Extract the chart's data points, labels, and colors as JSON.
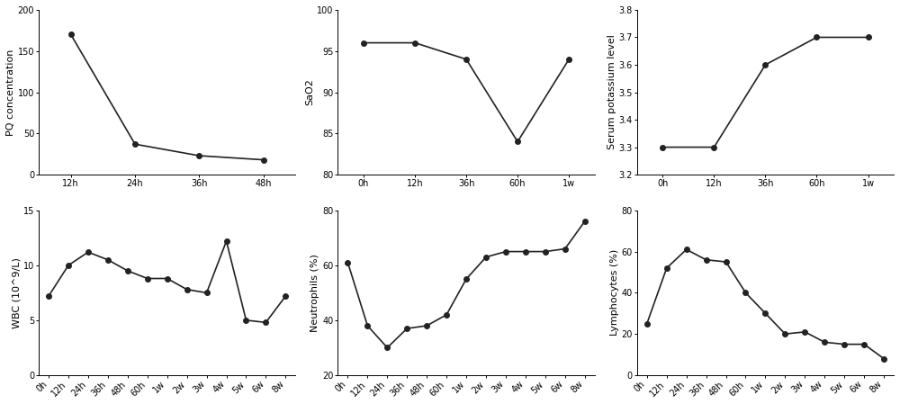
{
  "plots": [
    {
      "title": "",
      "ylabel": "PQ concentration",
      "xlabel": "",
      "x_labels": [
        "12h",
        "24h",
        "36h",
        "48h"
      ],
      "y_values": [
        170,
        37,
        23,
        18
      ],
      "ylim": [
        0,
        200
      ],
      "yticks": [
        0,
        50,
        100,
        150,
        200
      ],
      "row": 0,
      "col": 0
    },
    {
      "title": "",
      "ylabel": "SaO2",
      "xlabel": "",
      "x_labels": [
        "0h",
        "12h",
        "36h",
        "60h",
        "1w"
      ],
      "y_values": [
        96,
        96,
        94,
        84,
        94
      ],
      "ylim": [
        80,
        100
      ],
      "yticks": [
        80,
        85,
        90,
        95,
        100
      ],
      "row": 0,
      "col": 1
    },
    {
      "title": "",
      "ylabel": "Serum potassium level",
      "xlabel": "",
      "x_labels": [
        "0h",
        "12h",
        "36h",
        "60h",
        "1w"
      ],
      "y_values": [
        3.3,
        3.3,
        3.6,
        3.7,
        3.7
      ],
      "ylim": [
        3.2,
        3.8
      ],
      "yticks": [
        3.2,
        3.3,
        3.4,
        3.5,
        3.6,
        3.7,
        3.8
      ],
      "row": 0,
      "col": 2
    },
    {
      "title": "",
      "ylabel": "WBC (10^9/L)",
      "xlabel": "",
      "x_labels": [
        "0h",
        "12h",
        "24h",
        "36h",
        "48h",
        "60h",
        "1w",
        "2w",
        "3w",
        "4w",
        "5w",
        "6w",
        "8w"
      ],
      "y_values": [
        7.2,
        10.0,
        11.2,
        10.5,
        9.5,
        8.8,
        8.8,
        7.8,
        7.5,
        12.2,
        5.0,
        4.8,
        7.2
      ],
      "ylim": [
        0,
        15
      ],
      "yticks": [
        0,
        5,
        10,
        15
      ],
      "row": 1,
      "col": 0
    },
    {
      "title": "",
      "ylabel": "Neutrophils (%)",
      "xlabel": "",
      "x_labels": [
        "0h",
        "12h",
        "24h",
        "36h",
        "48h",
        "60h",
        "1w",
        "2w",
        "3w",
        "4w",
        "5w",
        "6w",
        "8w"
      ],
      "y_values": [
        61,
        38,
        30,
        37,
        38,
        42,
        55,
        63,
        65,
        65,
        65,
        66,
        76
      ],
      "ylim": [
        20,
        80
      ],
      "yticks": [
        20,
        40,
        60,
        80
      ],
      "row": 1,
      "col": 1
    },
    {
      "title": "",
      "ylabel": "Lymphocytes (%)",
      "xlabel": "",
      "x_labels": [
        "0h",
        "12h",
        "24h",
        "36h",
        "48h",
        "60h",
        "1w",
        "2w",
        "3w",
        "4w",
        "5w",
        "6w",
        "8w"
      ],
      "y_values": [
        25,
        52,
        61,
        56,
        55,
        40,
        30,
        20,
        21,
        16,
        15,
        15,
        8
      ],
      "ylim": [
        0,
        80
      ],
      "yticks": [
        0,
        20,
        40,
        60,
        80
      ],
      "row": 1,
      "col": 2
    }
  ],
  "line_color": "#222222",
  "marker": "o",
  "markersize": 4,
  "linewidth": 1.2,
  "bg_color": "#ffffff",
  "tick_labelsize": 7,
  "ylabel_fontsize": 8
}
